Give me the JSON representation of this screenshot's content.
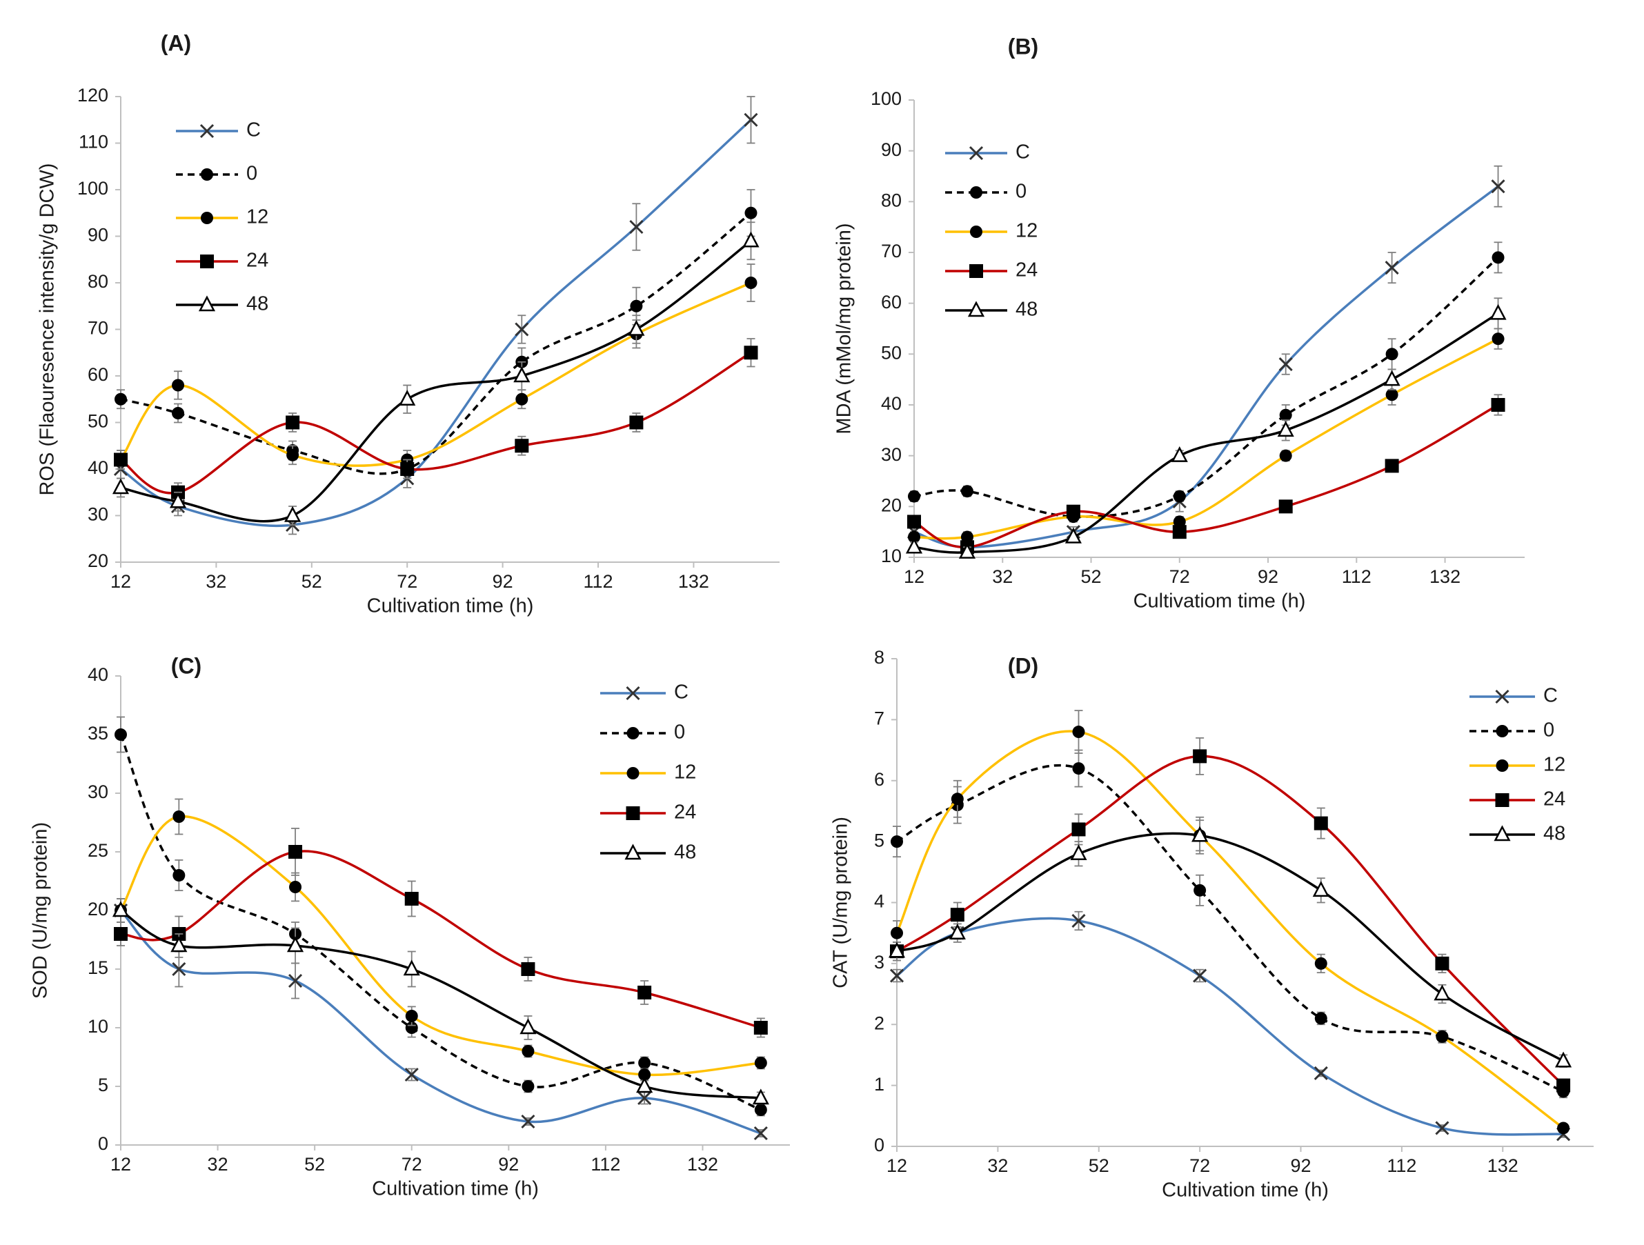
{
  "colors": {
    "C": "#4a7ebb",
    "0": "#000000",
    "12": "#ffc000",
    "24": "#c00000",
    "48": "#000000",
    "axis": "#bfbfbf",
    "text": "#1a1a1a",
    "errorbar": "#7f7f7f"
  },
  "legend": [
    {
      "key": "C",
      "label": "C",
      "marker": "x-icon",
      "dash": false
    },
    {
      "key": "0",
      "label": "0",
      "marker": "circle-icon",
      "dash": true
    },
    {
      "key": "12",
      "label": "12",
      "marker": "circle-icon",
      "dash": false
    },
    {
      "key": "24",
      "label": "24",
      "marker": "square-icon",
      "dash": false
    },
    {
      "key": "48",
      "label": "48",
      "marker": "triangle-icon",
      "dash": false
    }
  ],
  "chart_data": [
    {
      "type": "line",
      "panel": "(A)",
      "title": "",
      "xlabel": "Cultivation time (h)",
      "ylabel": "ROS (Flaouresence intensity/g DCW)",
      "xlim": [
        12,
        150
      ],
      "ylim": [
        20,
        120
      ],
      "xticks": [
        12,
        32,
        52,
        72,
        92,
        112,
        132
      ],
      "yticks": [
        20,
        30,
        40,
        50,
        60,
        70,
        80,
        90,
        100,
        110,
        120
      ],
      "x": [
        12,
        24,
        48,
        72,
        96,
        120,
        144
      ],
      "series": [
        {
          "name": "C",
          "values": [
            40,
            32,
            28,
            38,
            70,
            92,
            115
          ],
          "errors": [
            2,
            2,
            2,
            2,
            3,
            5,
            5
          ]
        },
        {
          "name": "0",
          "values": [
            55,
            52,
            44,
            40,
            63,
            75,
            95
          ],
          "errors": [
            2,
            2,
            2,
            2,
            3,
            4,
            5
          ]
        },
        {
          "name": "12",
          "values": [
            42,
            58,
            43,
            42,
            55,
            69,
            80
          ],
          "errors": [
            2,
            3,
            2,
            2,
            2,
            3,
            4
          ]
        },
        {
          "name": "24",
          "values": [
            42,
            35,
            50,
            40,
            45,
            50,
            65
          ],
          "errors": [
            2,
            2,
            2,
            2,
            2,
            2,
            3
          ]
        },
        {
          "name": "48",
          "values": [
            36,
            33,
            30,
            55,
            60,
            70,
            89
          ],
          "errors": [
            2,
            2,
            2,
            3,
            3,
            3,
            4
          ]
        }
      ]
    },
    {
      "type": "line",
      "panel": "(B)",
      "title": "",
      "xlabel": "Cultivatiom time (h)",
      "ylabel": "MDA (mMol/mg protein)",
      "xlim": [
        12,
        150
      ],
      "ylim": [
        10,
        100
      ],
      "xticks": [
        12,
        32,
        52,
        72,
        92,
        112,
        132
      ],
      "yticks": [
        10,
        20,
        30,
        40,
        50,
        60,
        70,
        80,
        90,
        100
      ],
      "x": [
        12,
        24,
        48,
        72,
        96,
        120,
        144
      ],
      "series": [
        {
          "name": "C",
          "values": [
            15,
            12,
            15,
            21,
            48,
            67,
            83
          ],
          "errors": [
            1,
            1,
            1,
            2,
            2,
            3,
            4
          ]
        },
        {
          "name": "0",
          "values": [
            22,
            23,
            18,
            22,
            38,
            50,
            69
          ],
          "errors": [
            1,
            1,
            1,
            1,
            2,
            3,
            3
          ]
        },
        {
          "name": "12",
          "values": [
            14,
            14,
            18,
            17,
            30,
            42,
            53
          ],
          "errors": [
            1,
            1,
            1,
            1,
            1,
            2,
            2
          ]
        },
        {
          "name": "24",
          "values": [
            17,
            12,
            19,
            15,
            20,
            28,
            40
          ],
          "errors": [
            1,
            1,
            1,
            1,
            1,
            1,
            2
          ]
        },
        {
          "name": "48",
          "values": [
            12,
            11,
            14,
            30,
            35,
            45,
            58
          ],
          "errors": [
            1,
            1,
            1,
            1,
            2,
            2,
            3
          ]
        }
      ]
    },
    {
      "type": "line",
      "panel": "(C)",
      "title": "",
      "xlabel": "Cultivation time (h)",
      "ylabel": "SOD (U/mg protein)",
      "xlim": [
        12,
        150
      ],
      "ylim": [
        0,
        40
      ],
      "xticks": [
        12,
        32,
        52,
        72,
        92,
        112,
        132
      ],
      "yticks": [
        0,
        5,
        10,
        15,
        20,
        25,
        30,
        35,
        40
      ],
      "x": [
        12,
        24,
        48,
        72,
        96,
        120,
        144
      ],
      "series": [
        {
          "name": "C",
          "values": [
            20,
            15,
            14,
            6,
            2,
            4,
            1
          ],
          "errors": [
            1,
            1.5,
            1.5,
            0.5,
            0.3,
            0.5,
            0.3
          ]
        },
        {
          "name": "0",
          "values": [
            35,
            23,
            18,
            10,
            5,
            7,
            3
          ],
          "errors": [
            1.5,
            1.3,
            1,
            0.8,
            0.5,
            0.5,
            0.5
          ]
        },
        {
          "name": "12",
          "values": [
            20,
            28,
            22,
            11,
            8,
            6,
            7
          ],
          "errors": [
            1,
            1.5,
            1.2,
            0.8,
            0.5,
            0.5,
            0.5
          ]
        },
        {
          "name": "24",
          "values": [
            18,
            18,
            25,
            21,
            15,
            13,
            10
          ],
          "errors": [
            1,
            1.5,
            2,
            1.5,
            1,
            1,
            0.8
          ]
        },
        {
          "name": "48",
          "values": [
            20,
            17,
            17,
            15,
            10,
            5,
            4
          ],
          "errors": [
            1,
            1,
            1.5,
            1.5,
            1,
            0.5,
            0.5
          ]
        }
      ]
    },
    {
      "type": "line",
      "panel": "(D)",
      "title": "",
      "xlabel": "Cultivation time (h)",
      "ylabel": "CAT (U/mg protein)",
      "xlim": [
        12,
        150
      ],
      "ylim": [
        0,
        8
      ],
      "xticks": [
        12,
        32,
        52,
        72,
        92,
        112,
        132
      ],
      "yticks": [
        0,
        1,
        2,
        3,
        4,
        5,
        6,
        7,
        8
      ],
      "x": [
        12,
        24,
        48,
        72,
        96,
        120,
        144
      ],
      "series": [
        {
          "name": "C",
          "values": [
            2.8,
            3.5,
            3.7,
            2.8,
            1.2,
            0.3,
            0.2
          ],
          "errors": [
            0.1,
            0.1,
            0.15,
            0.1,
            0.05,
            0.05,
            0.05
          ]
        },
        {
          "name": "0",
          "values": [
            5.0,
            5.6,
            6.2,
            4.2,
            2.1,
            1.8,
            0.9
          ],
          "errors": [
            0.25,
            0.3,
            0.3,
            0.25,
            0.1,
            0.1,
            0.1
          ]
        },
        {
          "name": "12",
          "values": [
            3.5,
            5.7,
            6.8,
            5.1,
            3.0,
            1.8,
            0.3
          ],
          "errors": [
            0.2,
            0.3,
            0.35,
            0.3,
            0.15,
            0.1,
            0.05
          ]
        },
        {
          "name": "24",
          "values": [
            3.2,
            3.8,
            5.2,
            6.4,
            5.3,
            3.0,
            1.0
          ],
          "errors": [
            0.15,
            0.2,
            0.25,
            0.3,
            0.25,
            0.15,
            0.1
          ]
        },
        {
          "name": "48",
          "values": [
            3.2,
            3.5,
            4.8,
            5.1,
            4.2,
            2.5,
            1.4
          ],
          "errors": [
            0.15,
            0.15,
            0.2,
            0.25,
            0.2,
            0.15,
            0.1
          ]
        }
      ]
    }
  ]
}
